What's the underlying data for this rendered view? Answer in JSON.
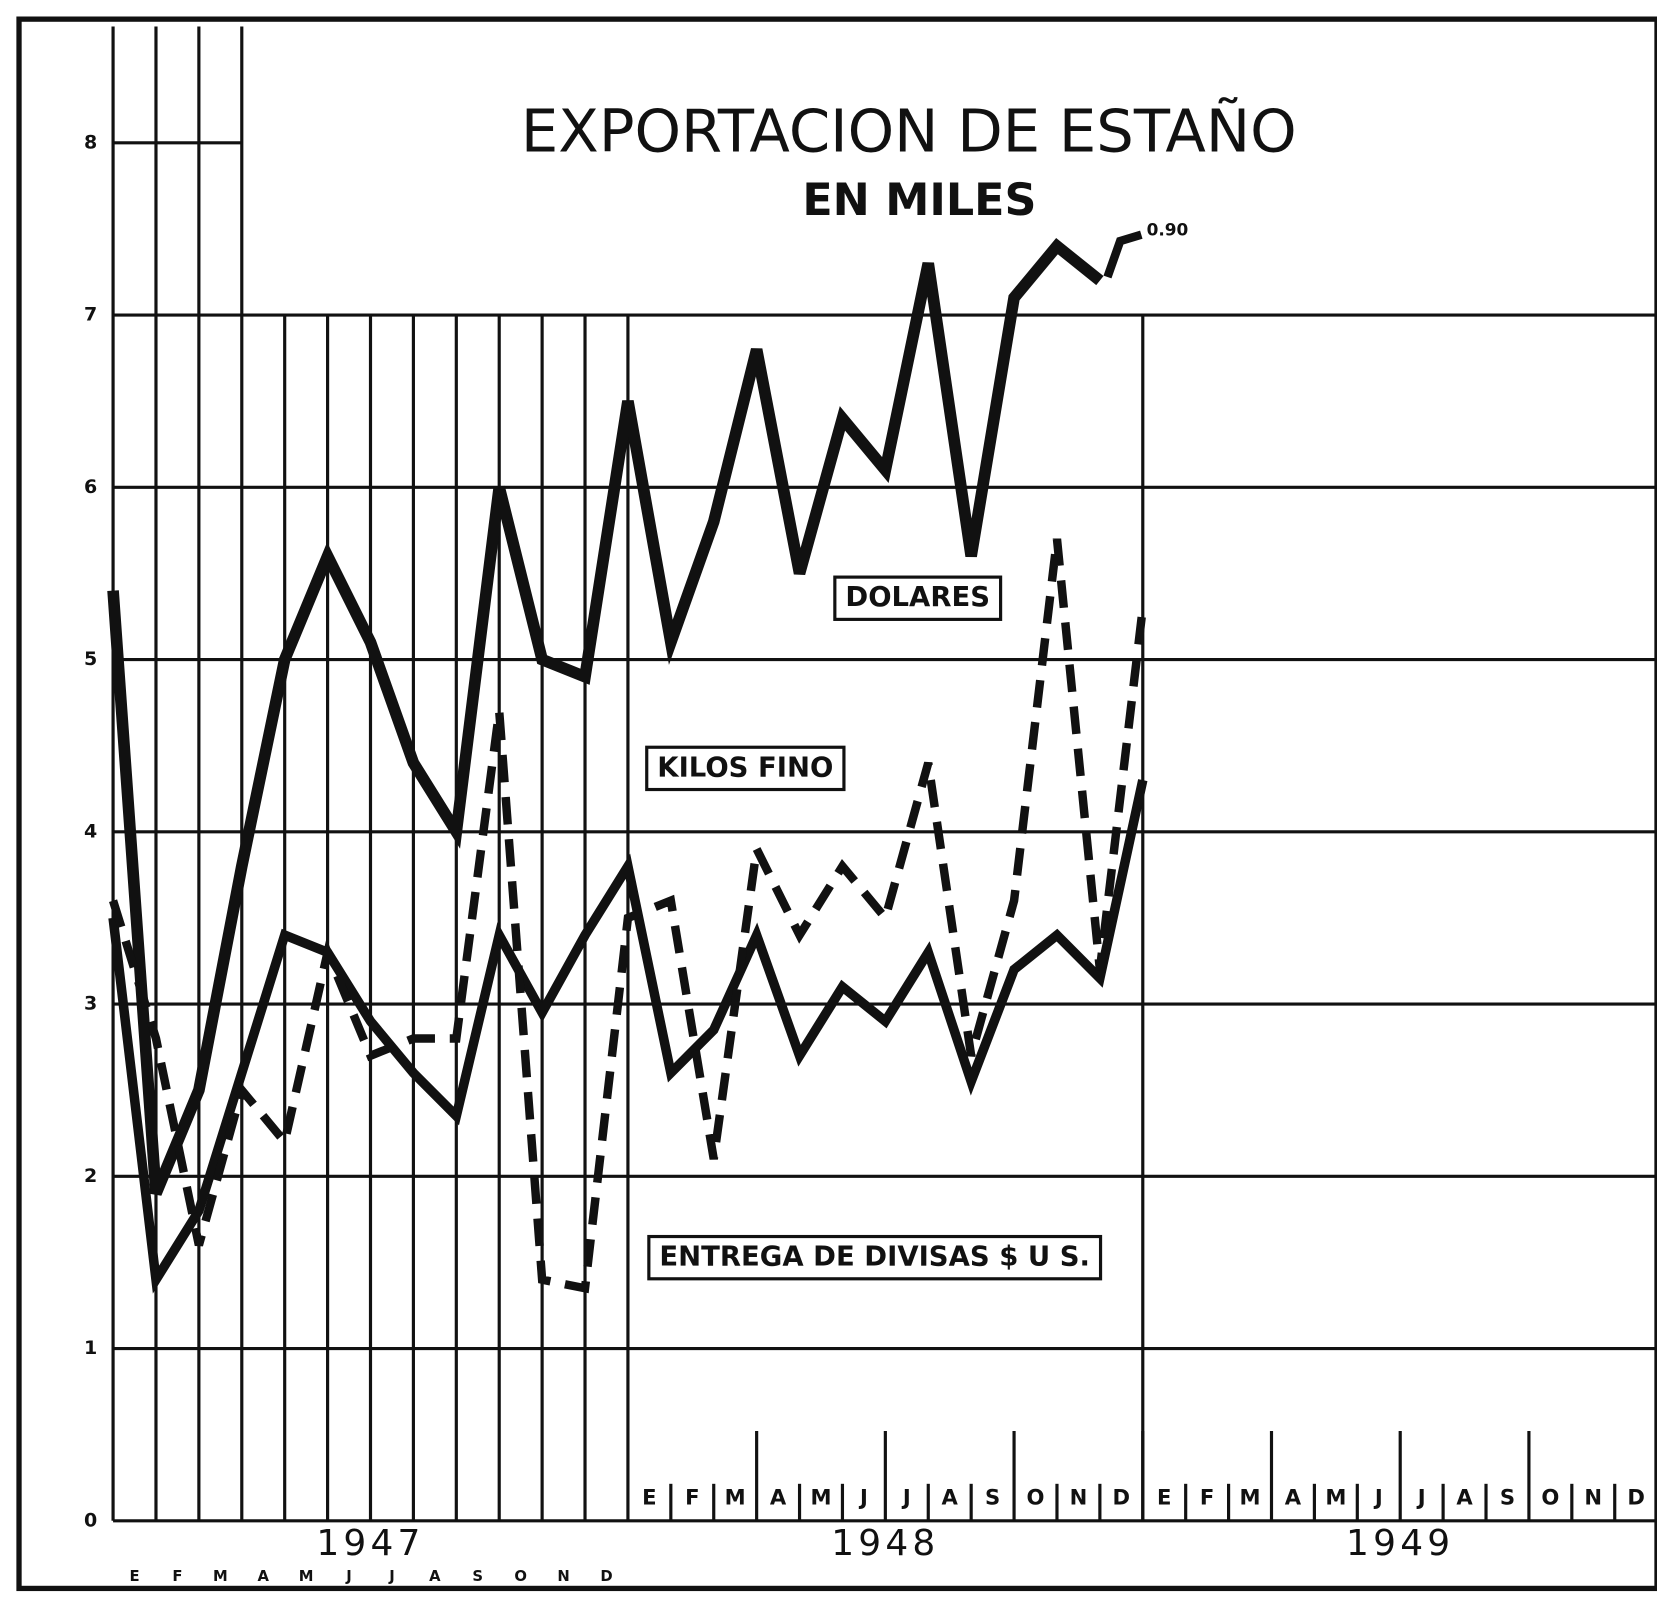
{
  "chart_data": {
    "type": "line",
    "title": "EXPORTACION DE ESTAÑO",
    "subtitle": "EN MILES",
    "annotation": "0.90",
    "categories": [
      "E",
      "F",
      "M",
      "A",
      "M",
      "J",
      "J",
      "A",
      "S",
      "O",
      "N",
      "D",
      "E",
      "F",
      "M",
      "A",
      "M",
      "J",
      "J",
      "A",
      "S",
      "O",
      "N",
      "D",
      "E",
      "F",
      "M",
      "A",
      "M",
      "J",
      "J",
      "A",
      "S",
      "O",
      "N",
      "D"
    ],
    "year_labels": [
      "1947",
      "1948",
      "1949"
    ],
    "series": [
      {
        "name": "DOLARES",
        "color": "#111111",
        "dashed": false,
        "values": [
          5.4,
          1.9,
          2.5,
          3.8,
          5.0,
          5.6,
          5.1,
          4.4,
          4.0,
          6.0,
          5.0,
          4.9,
          6.5,
          5.1,
          5.8,
          6.8,
          5.5,
          6.4,
          6.1,
          7.3,
          5.6,
          7.1,
          7.4,
          7.2,
          null,
          null,
          null,
          null,
          null,
          null,
          null,
          null,
          null,
          null,
          null,
          null
        ]
      },
      {
        "name": "KILOS FINO",
        "color": "#111111",
        "dashed": false,
        "values": [
          3.5,
          1.4,
          1.8,
          2.6,
          3.4,
          3.3,
          2.9,
          2.6,
          2.35,
          3.4,
          2.95,
          3.4,
          3.8,
          2.6,
          2.85,
          3.4,
          2.7,
          3.1,
          2.9,
          3.3,
          2.55,
          3.2,
          3.4,
          3.15,
          4.3,
          null,
          null,
          null,
          null,
          null,
          null,
          null,
          null,
          null,
          null,
          null
        ]
      },
      {
        "name": "ENTREGA DE DIVISAS $ U S.",
        "color": "#111111",
        "dashed": true,
        "values": [
          3.6,
          2.8,
          1.6,
          2.5,
          2.2,
          3.3,
          2.7,
          2.8,
          2.8,
          4.7,
          1.4,
          1.35,
          3.5,
          3.6,
          2.1,
          3.9,
          3.4,
          3.8,
          3.5,
          4.4,
          2.7,
          3.6,
          5.7,
          3.2,
          5.3,
          null,
          null,
          null,
          null,
          null,
          null,
          null,
          null,
          null,
          null,
          null
        ]
      }
    ],
    "ylim": [
      0,
      8
    ],
    "yticks": [
      0,
      1,
      2,
      3,
      4,
      5,
      6,
      7,
      8
    ],
    "grid": true
  }
}
